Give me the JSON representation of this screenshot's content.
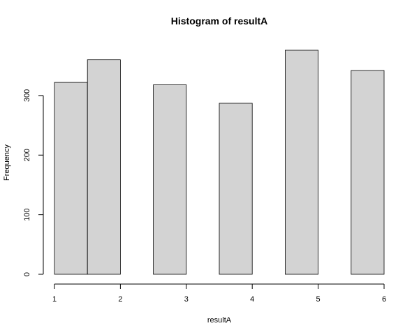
{
  "chart_data": {
    "type": "bar",
    "title": "Histogram of resultA",
    "xlabel": "resultA",
    "ylabel": "Frequency",
    "bins": [
      {
        "start": 1.0,
        "end": 1.5,
        "count": 322
      },
      {
        "start": 1.5,
        "end": 2.0,
        "count": 360
      },
      {
        "start": 2.0,
        "end": 2.5,
        "count": 0
      },
      {
        "start": 2.5,
        "end": 3.0,
        "count": 318
      },
      {
        "start": 3.0,
        "end": 3.5,
        "count": 0
      },
      {
        "start": 3.5,
        "end": 4.0,
        "count": 287
      },
      {
        "start": 4.0,
        "end": 4.5,
        "count": 0
      },
      {
        "start": 4.5,
        "end": 5.0,
        "count": 376
      },
      {
        "start": 5.0,
        "end": 5.5,
        "count": 0
      },
      {
        "start": 5.5,
        "end": 6.0,
        "count": 342
      }
    ],
    "xlim": [
      1,
      6
    ],
    "ylim": [
      0,
      376
    ],
    "xticks": [
      1,
      2,
      3,
      4,
      5,
      6
    ],
    "yticks": [
      0,
      100,
      200,
      300
    ],
    "grid": false,
    "bar_color": "#d3d3d3",
    "edge_color": "#000000"
  }
}
